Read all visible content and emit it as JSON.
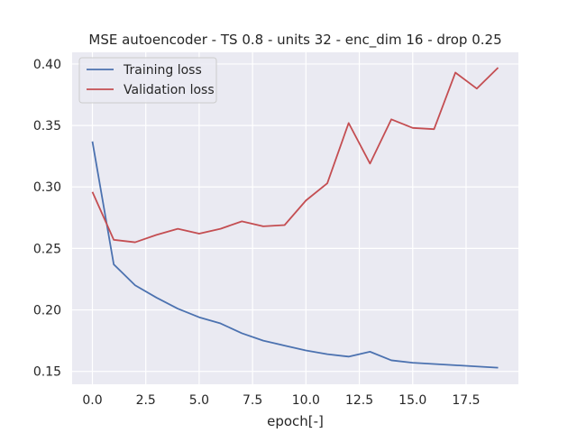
{
  "chart_data": {
    "type": "line",
    "title": "MSE autoencoder - TS 0.8 - units 32 - enc_dim 16 - drop 0.25",
    "xlabel": "epoch[-]",
    "ylabel": "",
    "xlim": [
      -0.95,
      19.95
    ],
    "ylim": [
      0.1395,
      0.4095
    ],
    "xticks": [
      0.0,
      2.5,
      5.0,
      7.5,
      10.0,
      12.5,
      15.0,
      17.5
    ],
    "xtick_labels": [
      "0.0",
      "2.5",
      "5.0",
      "7.5",
      "10.0",
      "12.5",
      "15.0",
      "17.5"
    ],
    "yticks": [
      0.15,
      0.2,
      0.25,
      0.3,
      0.35,
      0.4
    ],
    "ytick_labels": [
      "0.15",
      "0.20",
      "0.25",
      "0.30",
      "0.35",
      "0.40"
    ],
    "grid": true,
    "legend_position": "upper-left",
    "x": [
      0,
      1,
      2,
      3,
      4,
      5,
      6,
      7,
      8,
      9,
      10,
      11,
      12,
      13,
      14,
      15,
      16,
      17,
      18,
      19
    ],
    "series": [
      {
        "name": "Training loss",
        "color": "#4c72b0",
        "values": [
          0.337,
          0.237,
          0.22,
          0.21,
          0.201,
          0.194,
          0.189,
          0.181,
          0.175,
          0.171,
          0.167,
          0.164,
          0.162,
          0.166,
          0.159,
          0.157,
          0.156,
          0.155,
          0.154,
          0.153
        ]
      },
      {
        "name": "Validation loss",
        "color": "#c44e52",
        "values": [
          0.296,
          0.257,
          0.255,
          0.261,
          0.266,
          0.262,
          0.266,
          0.272,
          0.268,
          0.269,
          0.289,
          0.303,
          0.352,
          0.319,
          0.355,
          0.348,
          0.347,
          0.393,
          0.38,
          0.397
        ]
      }
    ],
    "plot_background": "#eaeaf2",
    "grid_color": "#ffffff"
  }
}
